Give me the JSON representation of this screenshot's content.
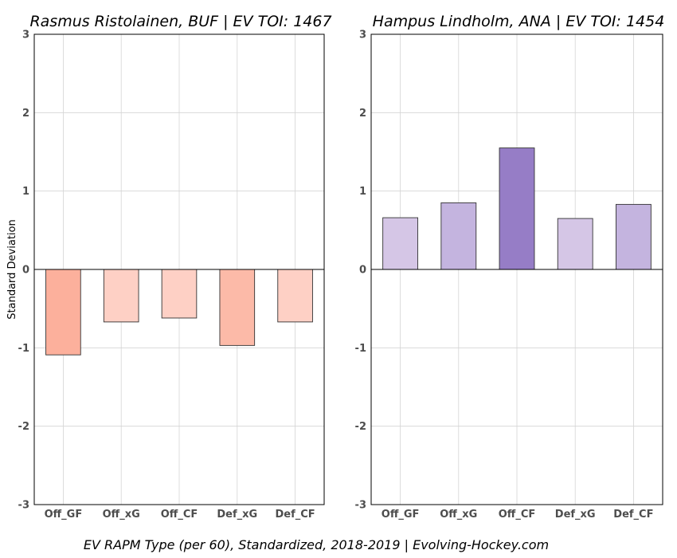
{
  "y_axis_label": "Standard Deviation",
  "caption": "EV RAPM Type (per 60), Standardized, 2018-2019    |    Evolving-Hockey.com",
  "chart_data": [
    {
      "type": "bar",
      "title": "Rasmus Ristolainen, BUF  |  EV TOI: 1467",
      "categories": [
        "Off_GF",
        "Off_xG",
        "Off_CF",
        "Def_xG",
        "Def_CF"
      ],
      "values": [
        -1.09,
        -0.67,
        -0.62,
        -0.97,
        -0.67
      ],
      "colors": [
        "#fcb09c",
        "#fed0c5",
        "#fed0c5",
        "#fcbaa8",
        "#fed0c5"
      ],
      "ylabel": "Standard Deviation",
      "ylim": [
        -3,
        3
      ],
      "yticks": [
        -3,
        -2,
        -1,
        0,
        1,
        2,
        3
      ],
      "grid": true
    },
    {
      "type": "bar",
      "title": "Hampus Lindholm, ANA  |  EV TOI: 1454",
      "categories": [
        "Off_GF",
        "Off_xG",
        "Off_CF",
        "Def_xG",
        "Def_CF"
      ],
      "values": [
        0.66,
        0.85,
        1.55,
        0.65,
        0.83
      ],
      "colors": [
        "#d5c6e6",
        "#c4b4df",
        "#967dc6",
        "#d5c6e6",
        "#c4b4df"
      ],
      "ylabel": "",
      "ylim": [
        -3,
        3
      ],
      "yticks": [
        -3,
        -2,
        -1,
        0,
        1,
        2,
        3
      ],
      "grid": true
    }
  ]
}
